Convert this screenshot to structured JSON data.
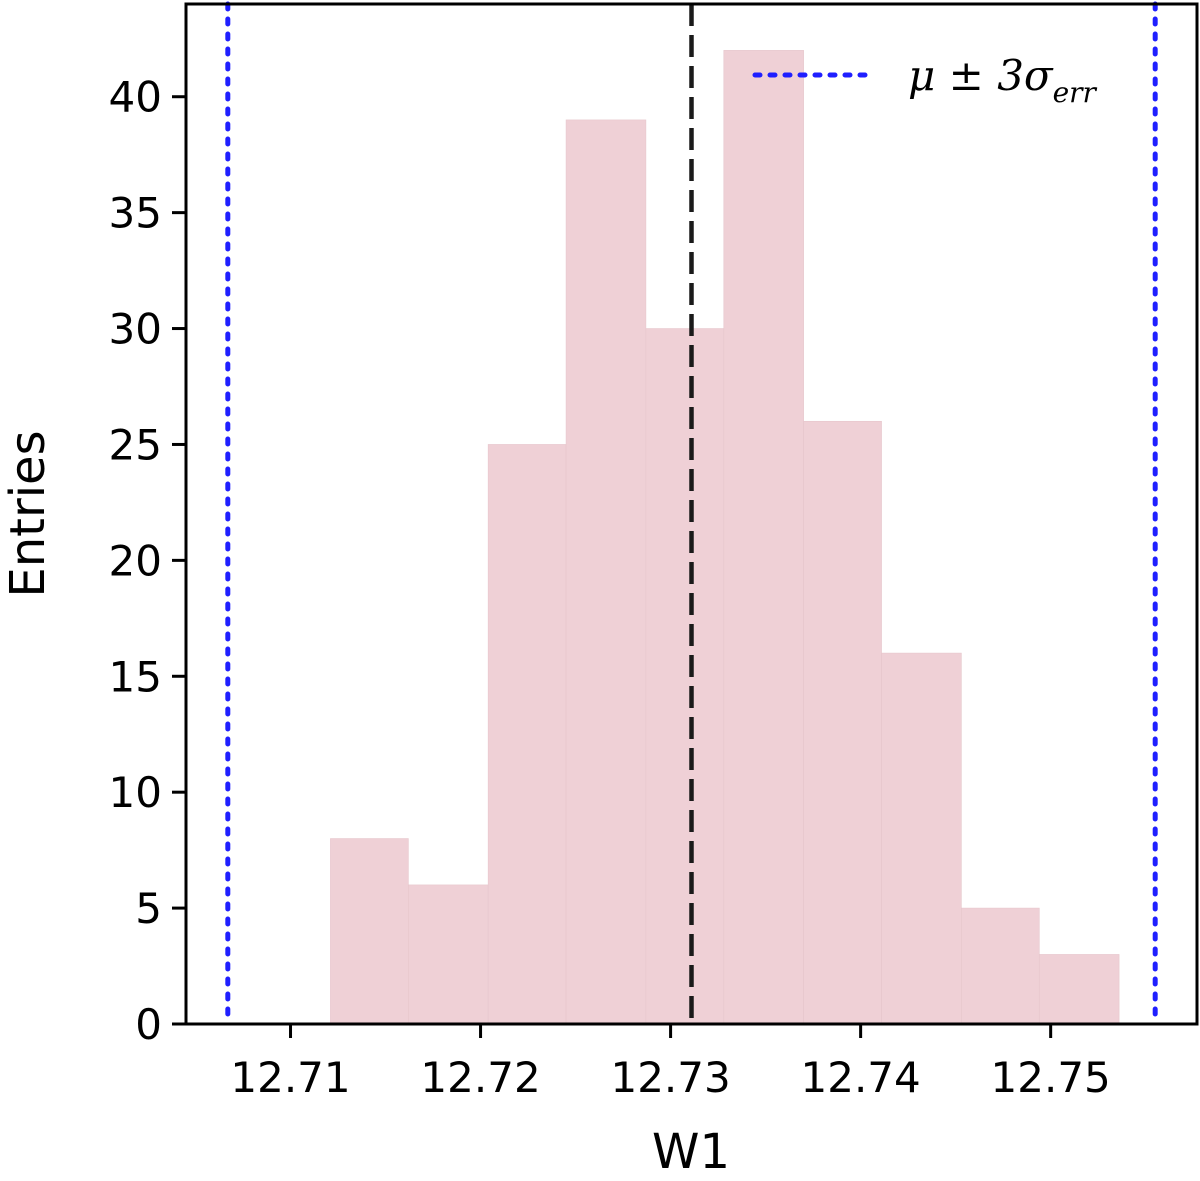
{
  "chart_data": {
    "type": "bar",
    "title": "",
    "xlabel": "W1",
    "ylabel": "Entries",
    "xlim": [
      12.7045,
      12.7577
    ],
    "ylim": [
      0,
      44
    ],
    "xticks": [
      12.71,
      12.72,
      12.73,
      12.74,
      12.75
    ],
    "xtick_labels": [
      "12.71",
      "12.72",
      "12.73",
      "12.74",
      "12.75"
    ],
    "yticks": [
      0,
      5,
      10,
      15,
      20,
      25,
      30,
      35,
      40
    ],
    "ytick_labels": [
      "0",
      "5",
      "10",
      "15",
      "20",
      "25",
      "30",
      "35",
      "40"
    ],
    "bins": {
      "edges": [
        12.7121,
        12.7162,
        12.7204,
        12.7245,
        12.7287,
        12.7328,
        12.737,
        12.7411,
        12.7453,
        12.7494,
        12.7536
      ],
      "counts": [
        8,
        6,
        25,
        39,
        30,
        42,
        26,
        16,
        5,
        3
      ]
    },
    "bar_color": "#efd0d6",
    "vlines": [
      {
        "x": 12.7311,
        "style": "dashed",
        "color": "#1a1a1a"
      },
      {
        "x": 12.7067,
        "style": "dotted",
        "color": "#1f1fff"
      },
      {
        "x": 12.7555,
        "style": "dotted",
        "color": "#1f1fff"
      }
    ],
    "legend": {
      "position": "top-right",
      "entries": [
        {
          "style": "dotted",
          "color": "#1f1fff",
          "label_main": "μ ± 3σ",
          "label_sub": "err"
        }
      ]
    },
    "grid": false
  }
}
